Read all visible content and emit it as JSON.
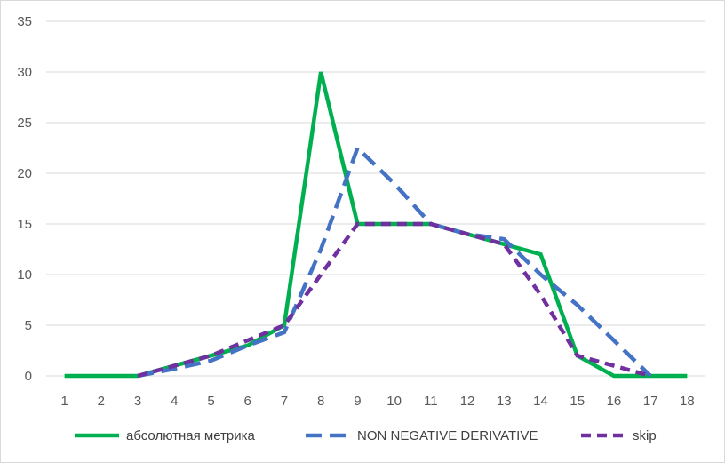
{
  "chart_data": {
    "type": "line",
    "title": "",
    "xlabel": "",
    "ylabel": "",
    "categories": [
      "1",
      "2",
      "3",
      "4",
      "5",
      "6",
      "7",
      "8",
      "9",
      "10",
      "11",
      "12",
      "13",
      "14",
      "15",
      "16",
      "17",
      "18"
    ],
    "ylim": [
      0,
      35
    ],
    "yticks": [
      "0",
      "5",
      "10",
      "15",
      "20",
      "25",
      "30",
      "35"
    ],
    "grid": "horizontal",
    "legend_position": "bottom",
    "series": [
      {
        "name": "абсолютная метрика",
        "color": "#00b050",
        "style": "solid",
        "values": [
          0,
          0,
          0,
          1,
          2,
          3,
          5,
          30,
          15,
          15,
          15,
          14,
          13,
          12,
          2,
          0,
          0,
          0
        ]
      },
      {
        "name": "NON NEGATIVE DERIVATIVE",
        "color": "#4472c4",
        "style": "dashed",
        "values": [
          null,
          null,
          0,
          0.7,
          1.5,
          3,
          4.3,
          12.5,
          22.5,
          19,
          15,
          14,
          13.5,
          10,
          7,
          3.5,
          0,
          null
        ]
      },
      {
        "name": "skip",
        "color": "#7030a0",
        "style": "dashed",
        "values": [
          null,
          null,
          0,
          1,
          2,
          3.5,
          5,
          10,
          15,
          15,
          15,
          14,
          13,
          8,
          2,
          1,
          0,
          null
        ]
      }
    ]
  }
}
